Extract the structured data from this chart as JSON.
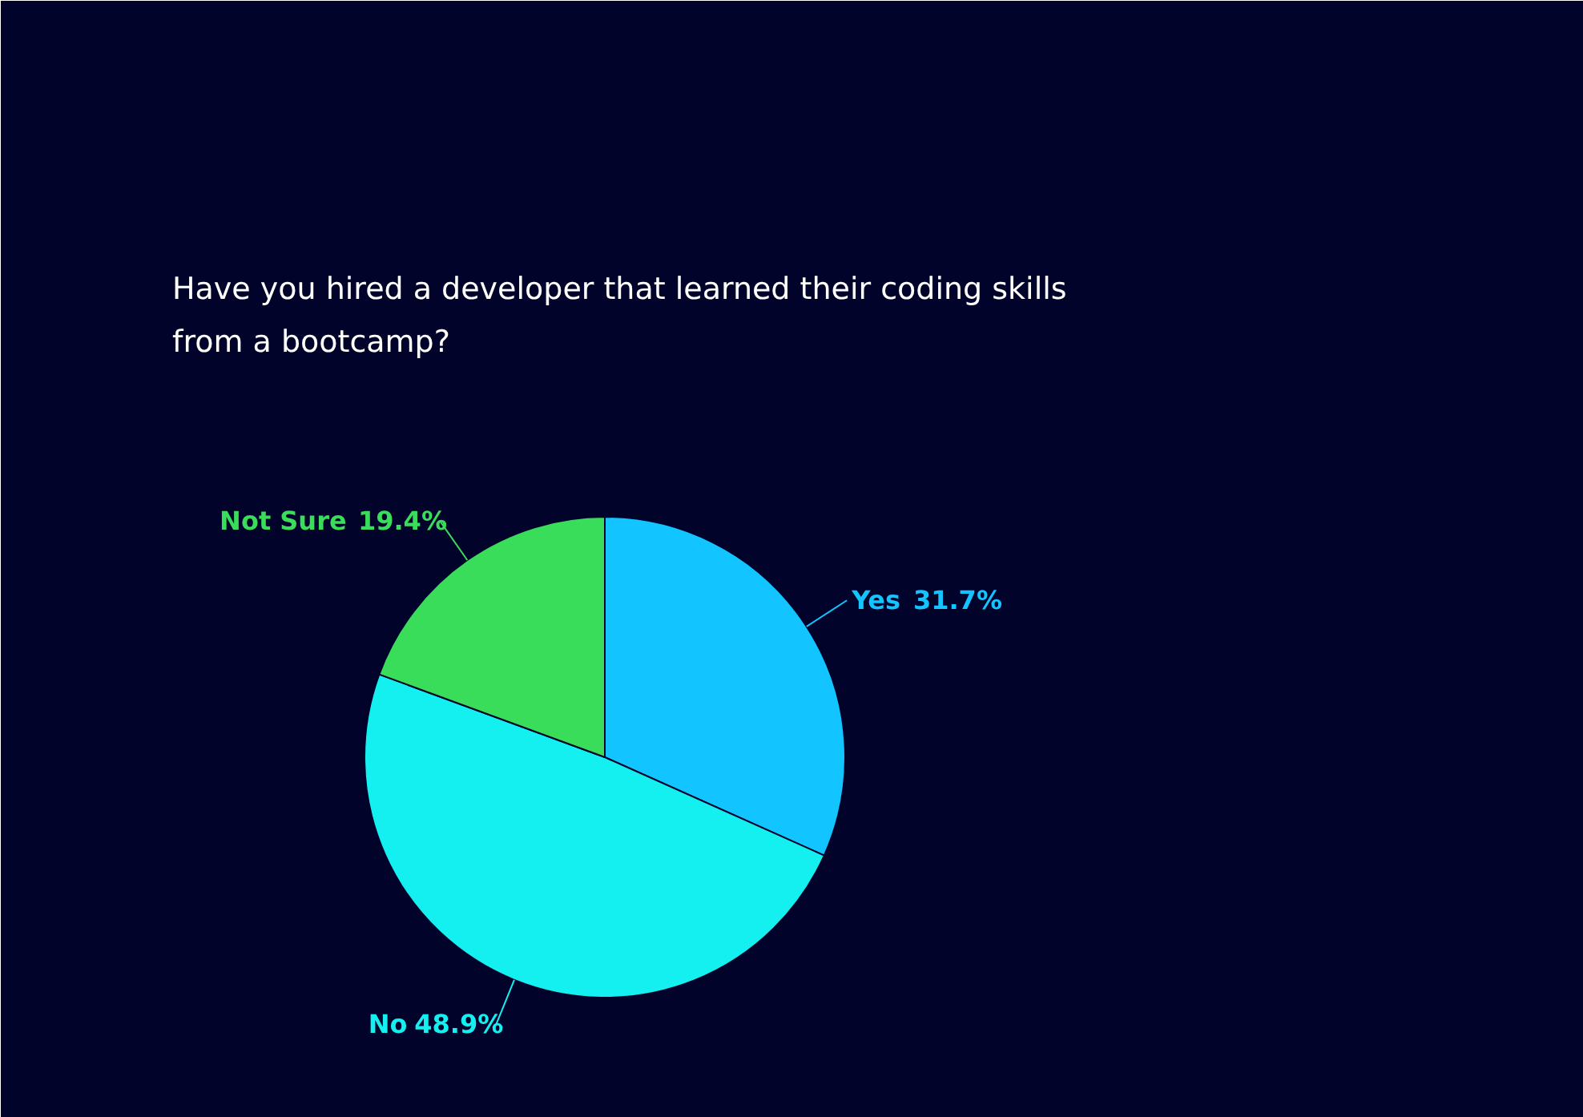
{
  "chart_data": {
    "type": "pie",
    "title": "Have you hired a developer that learned their coding skills from a bootcamp?",
    "categories": [
      "Yes",
      "No",
      "Not Sure"
    ],
    "values": [
      31.7,
      48.9,
      19.4
    ],
    "colors": [
      "#12c4ff",
      "#14f0f0",
      "#39dd5a"
    ],
    "value_labels": [
      "31.7%",
      "48.9%",
      "19.4%"
    ]
  }
}
